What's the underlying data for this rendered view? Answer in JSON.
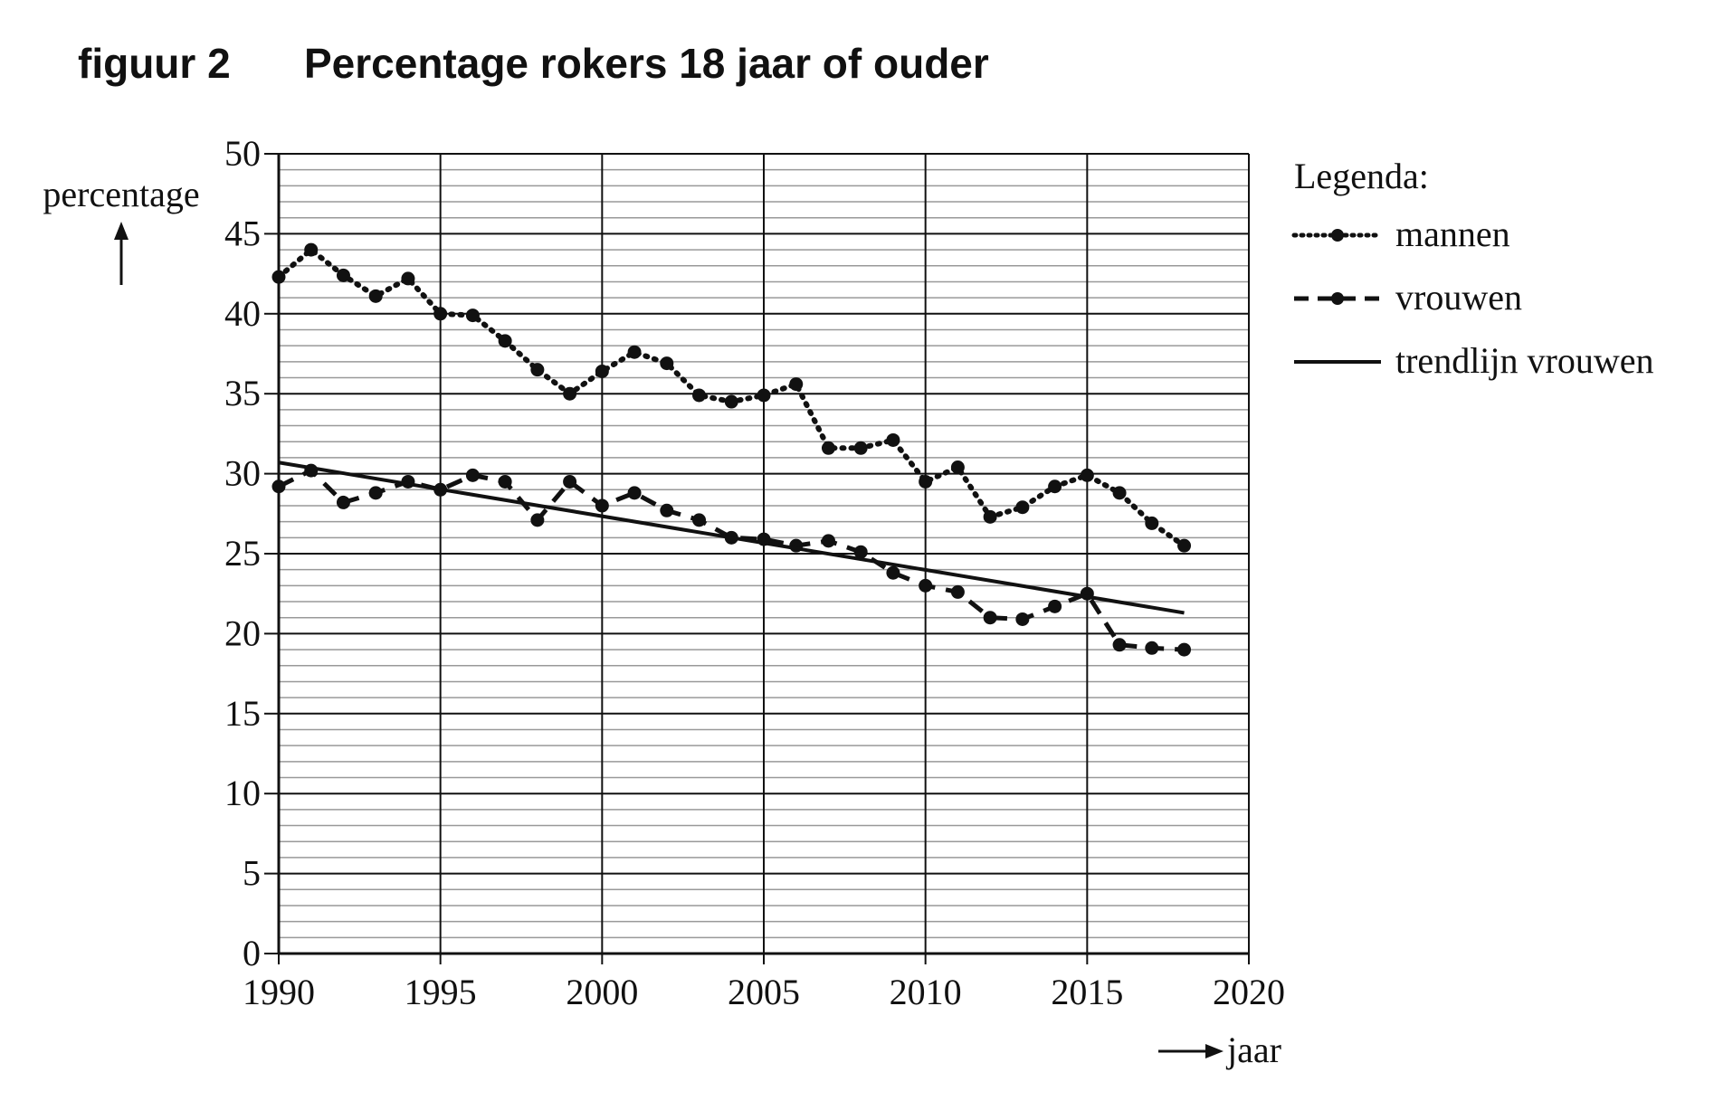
{
  "figure_label": "figuur 2",
  "chart_data": {
    "type": "line",
    "title": "Percentage rokers 18 jaar of ouder",
    "xlabel": "jaar",
    "ylabel": "percentage",
    "xlim": [
      1990,
      2020
    ],
    "ylim": [
      0,
      50
    ],
    "x_ticks": [
      "1990",
      "1995",
      "2000",
      "2005",
      "2010",
      "2015",
      "2020"
    ],
    "y_ticks": [
      "0",
      "5",
      "10",
      "15",
      "20",
      "25",
      "30",
      "35",
      "40",
      "45",
      "50"
    ],
    "grid": true,
    "legend_title": "Legenda:",
    "legend_position": "right",
    "x": [
      1990,
      1991,
      1992,
      1993,
      1994,
      1995,
      1996,
      1997,
      1998,
      1999,
      2000,
      2001,
      2002,
      2003,
      2004,
      2005,
      2006,
      2007,
      2008,
      2009,
      2010,
      2011,
      2012,
      2013,
      2014,
      2015,
      2016,
      2017,
      2018
    ],
    "series": [
      {
        "name": "mannen",
        "style": "dotted",
        "values": [
          42.3,
          44.0,
          42.4,
          41.1,
          42.2,
          40.0,
          39.9,
          38.3,
          36.5,
          35.0,
          36.4,
          37.6,
          36.9,
          34.9,
          34.5,
          34.9,
          35.6,
          31.6,
          31.6,
          32.1,
          29.5,
          30.4,
          27.3,
          27.9,
          29.2,
          29.9,
          28.8,
          26.9,
          25.5
        ]
      },
      {
        "name": "vrouwen",
        "style": "dashed",
        "values": [
          29.2,
          30.2,
          28.2,
          28.8,
          29.5,
          29.0,
          29.9,
          29.5,
          27.1,
          29.5,
          28.0,
          28.8,
          27.7,
          27.1,
          26.0,
          25.9,
          25.5,
          25.8,
          25.1,
          23.8,
          23.0,
          22.6,
          21.0,
          20.9,
          21.7,
          22.5,
          19.3,
          19.1,
          19.0
        ]
      },
      {
        "name": "trendlijn vrouwen",
        "style": "solid",
        "x": [
          1990,
          2018
        ],
        "values": [
          30.7,
          21.3
        ]
      }
    ]
  }
}
